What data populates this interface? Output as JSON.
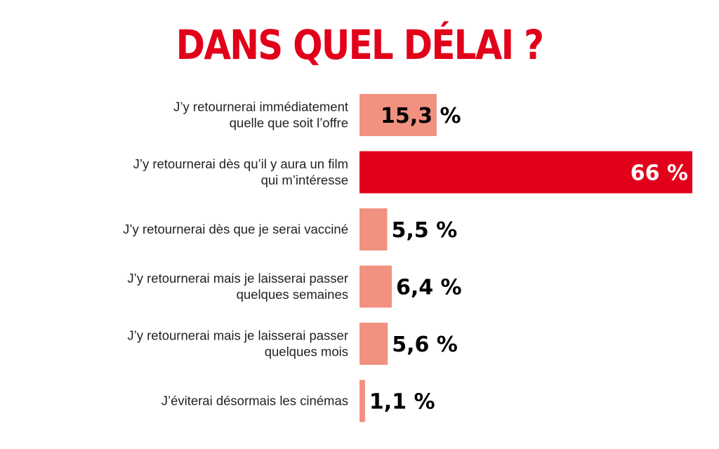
{
  "chart_data": {
    "type": "bar",
    "orientation": "horizontal",
    "title": "DANS QUEL DÉLAI ?",
    "categories": [
      [
        "J’y retournerai immédiatement",
        "quelle que soit l’offre"
      ],
      [
        "J’y retournerai dès qu’il y aura un film",
        "qui m’intéresse"
      ],
      [
        "J’y retournerai dès que je serai vacciné"
      ],
      [
        "J’y retournerai mais je laisserai passer",
        "quelques semaines"
      ],
      [
        "J’y retournerai mais je laisserai passer",
        "quelques mois"
      ],
      [
        "J’éviterai désormais les cinémas"
      ]
    ],
    "values": [
      15.3,
      66,
      5.5,
      6.4,
      5.6,
      1.1
    ],
    "value_labels": [
      "15,3 %",
      "66 %",
      "5,5 %",
      "6,4 %",
      "5,6 %",
      "1,1 %"
    ],
    "highlight_index": 1,
    "unit": "%",
    "xlim": [
      0,
      66
    ],
    "grid": false,
    "legend": "none",
    "colors": {
      "bar": "#f19180",
      "bar_highlight": "#e2001a",
      "title": "#e2001a",
      "label": "#231f20",
      "value": "#000000",
      "value_highlight": "#ffffff"
    }
  }
}
